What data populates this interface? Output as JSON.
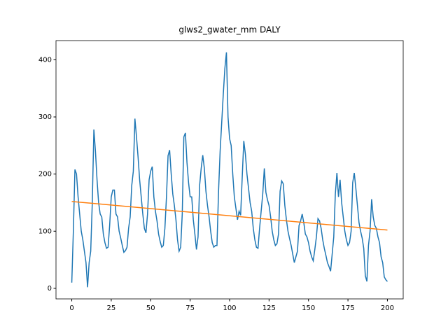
{
  "chart_data": {
    "type": "line",
    "title": "glws2_gwater_mm DALY",
    "x": [
      0,
      1,
      2,
      3,
      4,
      5,
      6,
      7,
      8,
      9,
      10,
      11,
      12,
      13,
      14,
      15,
      16,
      17,
      18,
      19,
      20,
      21,
      22,
      23,
      24,
      25,
      26,
      27,
      28,
      29,
      30,
      31,
      32,
      33,
      34,
      35,
      36,
      37,
      38,
      39,
      40,
      41,
      42,
      43,
      44,
      45,
      46,
      47,
      48,
      49,
      50,
      51,
      52,
      53,
      54,
      55,
      56,
      57,
      58,
      59,
      60,
      61,
      62,
      63,
      64,
      65,
      66,
      67,
      68,
      69,
      70,
      71,
      72,
      73,
      74,
      75,
      76,
      77,
      78,
      79,
      80,
      81,
      82,
      83,
      84,
      85,
      86,
      87,
      88,
      89,
      90,
      91,
      92,
      93,
      94,
      95,
      96,
      97,
      98,
      99,
      100,
      101,
      102,
      103,
      104,
      105,
      106,
      107,
      108,
      109,
      110,
      111,
      112,
      113,
      114,
      115,
      116,
      117,
      118,
      119,
      120,
      121,
      122,
      123,
      124,
      125,
      126,
      127,
      128,
      129,
      130,
      131,
      132,
      133,
      134,
      135,
      136,
      137,
      138,
      139,
      140,
      141,
      142,
      143,
      144,
      145,
      146,
      147,
      148,
      149,
      150,
      151,
      152,
      153,
      154,
      155,
      156,
      157,
      158,
      159,
      160,
      161,
      162,
      163,
      164,
      165,
      166,
      167,
      168,
      169,
      170,
      171,
      172,
      173,
      174,
      175,
      176,
      177,
      178,
      179,
      180,
      181,
      182,
      183,
      184,
      185,
      186,
      187,
      188,
      189,
      190,
      191,
      192,
      193,
      194,
      195,
      196,
      197,
      198,
      199,
      200
    ],
    "series": [
      {
        "color": "#1f77b4",
        "values": [
          10,
          100,
          208,
          200,
          160,
          130,
          100,
          85,
          65,
          45,
          2,
          45,
          65,
          150,
          278,
          240,
          190,
          150,
          130,
          125,
          95,
          80,
          70,
          72,
          110,
          160,
          172,
          172,
          130,
          125,
          100,
          88,
          75,
          63,
          66,
          72,
          105,
          125,
          180,
          205,
          297,
          265,
          230,
          190,
          160,
          130,
          105,
          97,
          130,
          190,
          205,
          213,
          160,
          135,
          118,
          95,
          82,
          72,
          75,
          105,
          160,
          232,
          242,
          200,
          165,
          145,
          120,
          85,
          65,
          72,
          130,
          265,
          272,
          220,
          185,
          160,
          160,
          120,
          95,
          68,
          90,
          180,
          210,
          233,
          210,
          170,
          145,
          125,
          100,
          80,
          72,
          75,
          75,
          170,
          240,
          290,
          340,
          385,
          413,
          300,
          262,
          250,
          200,
          160,
          140,
          120,
          135,
          128,
          195,
          258,
          235,
          200,
          175,
          150,
          135,
          105,
          85,
          72,
          70,
          105,
          135,
          165,
          210,
          168,
          155,
          145,
          125,
          100,
          85,
          75,
          78,
          95,
          170,
          188,
          183,
          145,
          120,
          100,
          87,
          75,
          60,
          45,
          55,
          65,
          110,
          118,
          130,
          115,
          95,
          90,
          80,
          65,
          55,
          48,
          68,
          90,
          122,
          118,
          105,
          85,
          70,
          58,
          45,
          38,
          30,
          60,
          90,
          165,
          202,
          160,
          190,
          150,
          125,
          100,
          85,
          75,
          80,
          100,
          185,
          202,
          175,
          145,
          115,
          100,
          88,
          70,
          22,
          12,
          75,
          100,
          156,
          125,
          110,
          105,
          90,
          80,
          55,
          45,
          20,
          15,
          12
        ]
      },
      {
        "color": "#ff7f0e",
        "x": [
          0,
          200
        ],
        "values": [
          152,
          102
        ]
      }
    ],
    "xlim": [
      -10,
      210
    ],
    "ylim": [
      -18.5,
      433.6
    ],
    "xticks": [
      0,
      25,
      50,
      75,
      100,
      125,
      150,
      175,
      200
    ],
    "yticks": [
      0,
      100,
      200,
      300,
      400
    ]
  }
}
